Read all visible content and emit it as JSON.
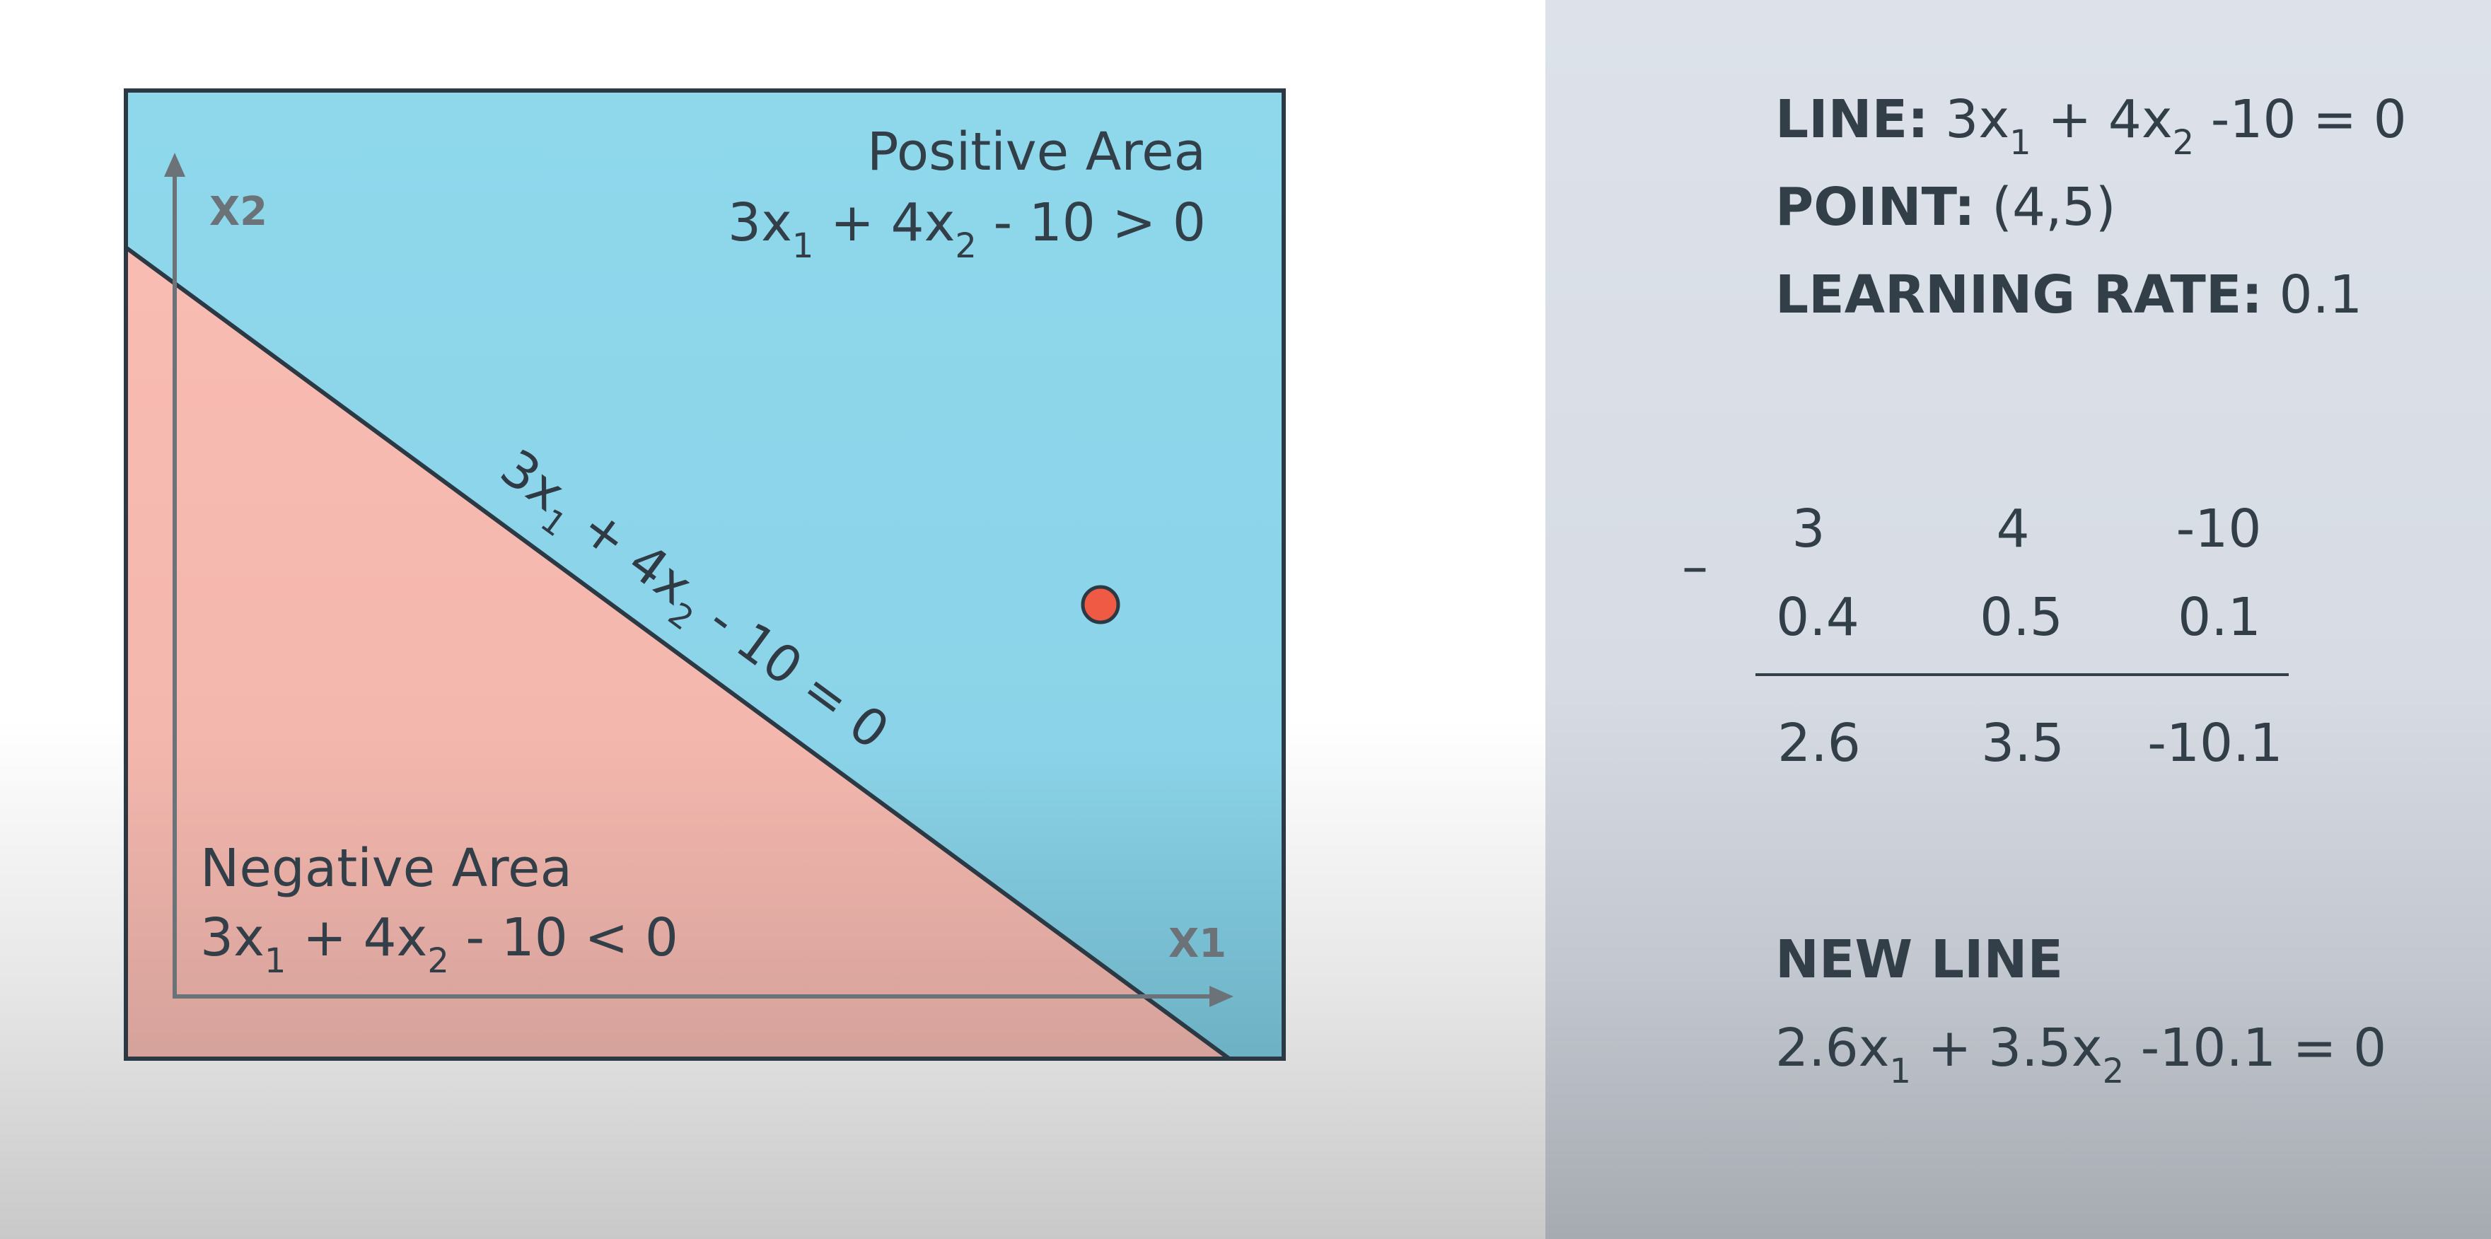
{
  "diagram": {
    "x_axis_label": "X1",
    "y_axis_label": "X2",
    "positive_area": {
      "title": "Positive Area",
      "inequality_parts": [
        "3x",
        "1",
        " + 4x",
        "2",
        " - 10 > 0"
      ]
    },
    "negative_area": {
      "title": "Negative Area",
      "inequality_parts": [
        "3x",
        "1",
        " + 4x",
        "2",
        " - 10 < 0"
      ]
    },
    "line_label_parts": [
      "3x",
      "1",
      " + 4x",
      "2",
      " - 10 = 0"
    ],
    "colors": {
      "positive": "#8fd8ec",
      "negative": "#f9bcb2",
      "point": "#ef5a44",
      "border": "#2b3944",
      "axis": "#6b7278"
    }
  },
  "info": {
    "line": {
      "label": "LINE:",
      "parts": [
        "3x",
        "1",
        " + 4x",
        "2",
        " -10 = 0"
      ]
    },
    "point": {
      "label": "POINT:",
      "value": "(4,5)"
    },
    "learning_rate": {
      "label": "LEARNING RATE:",
      "value": "0.1"
    }
  },
  "calculation": {
    "operator": "–",
    "row1": [
      "3",
      "4",
      "-10"
    ],
    "row2": [
      "0.4",
      "0.5",
      "0.1"
    ],
    "result": [
      "2.6",
      "3.5",
      "-10.1"
    ]
  },
  "new_line": {
    "title": "NEW LINE",
    "parts": [
      "2.6x",
      "1",
      " + 3.5x",
      "2",
      " -10.1 = 0"
    ]
  }
}
